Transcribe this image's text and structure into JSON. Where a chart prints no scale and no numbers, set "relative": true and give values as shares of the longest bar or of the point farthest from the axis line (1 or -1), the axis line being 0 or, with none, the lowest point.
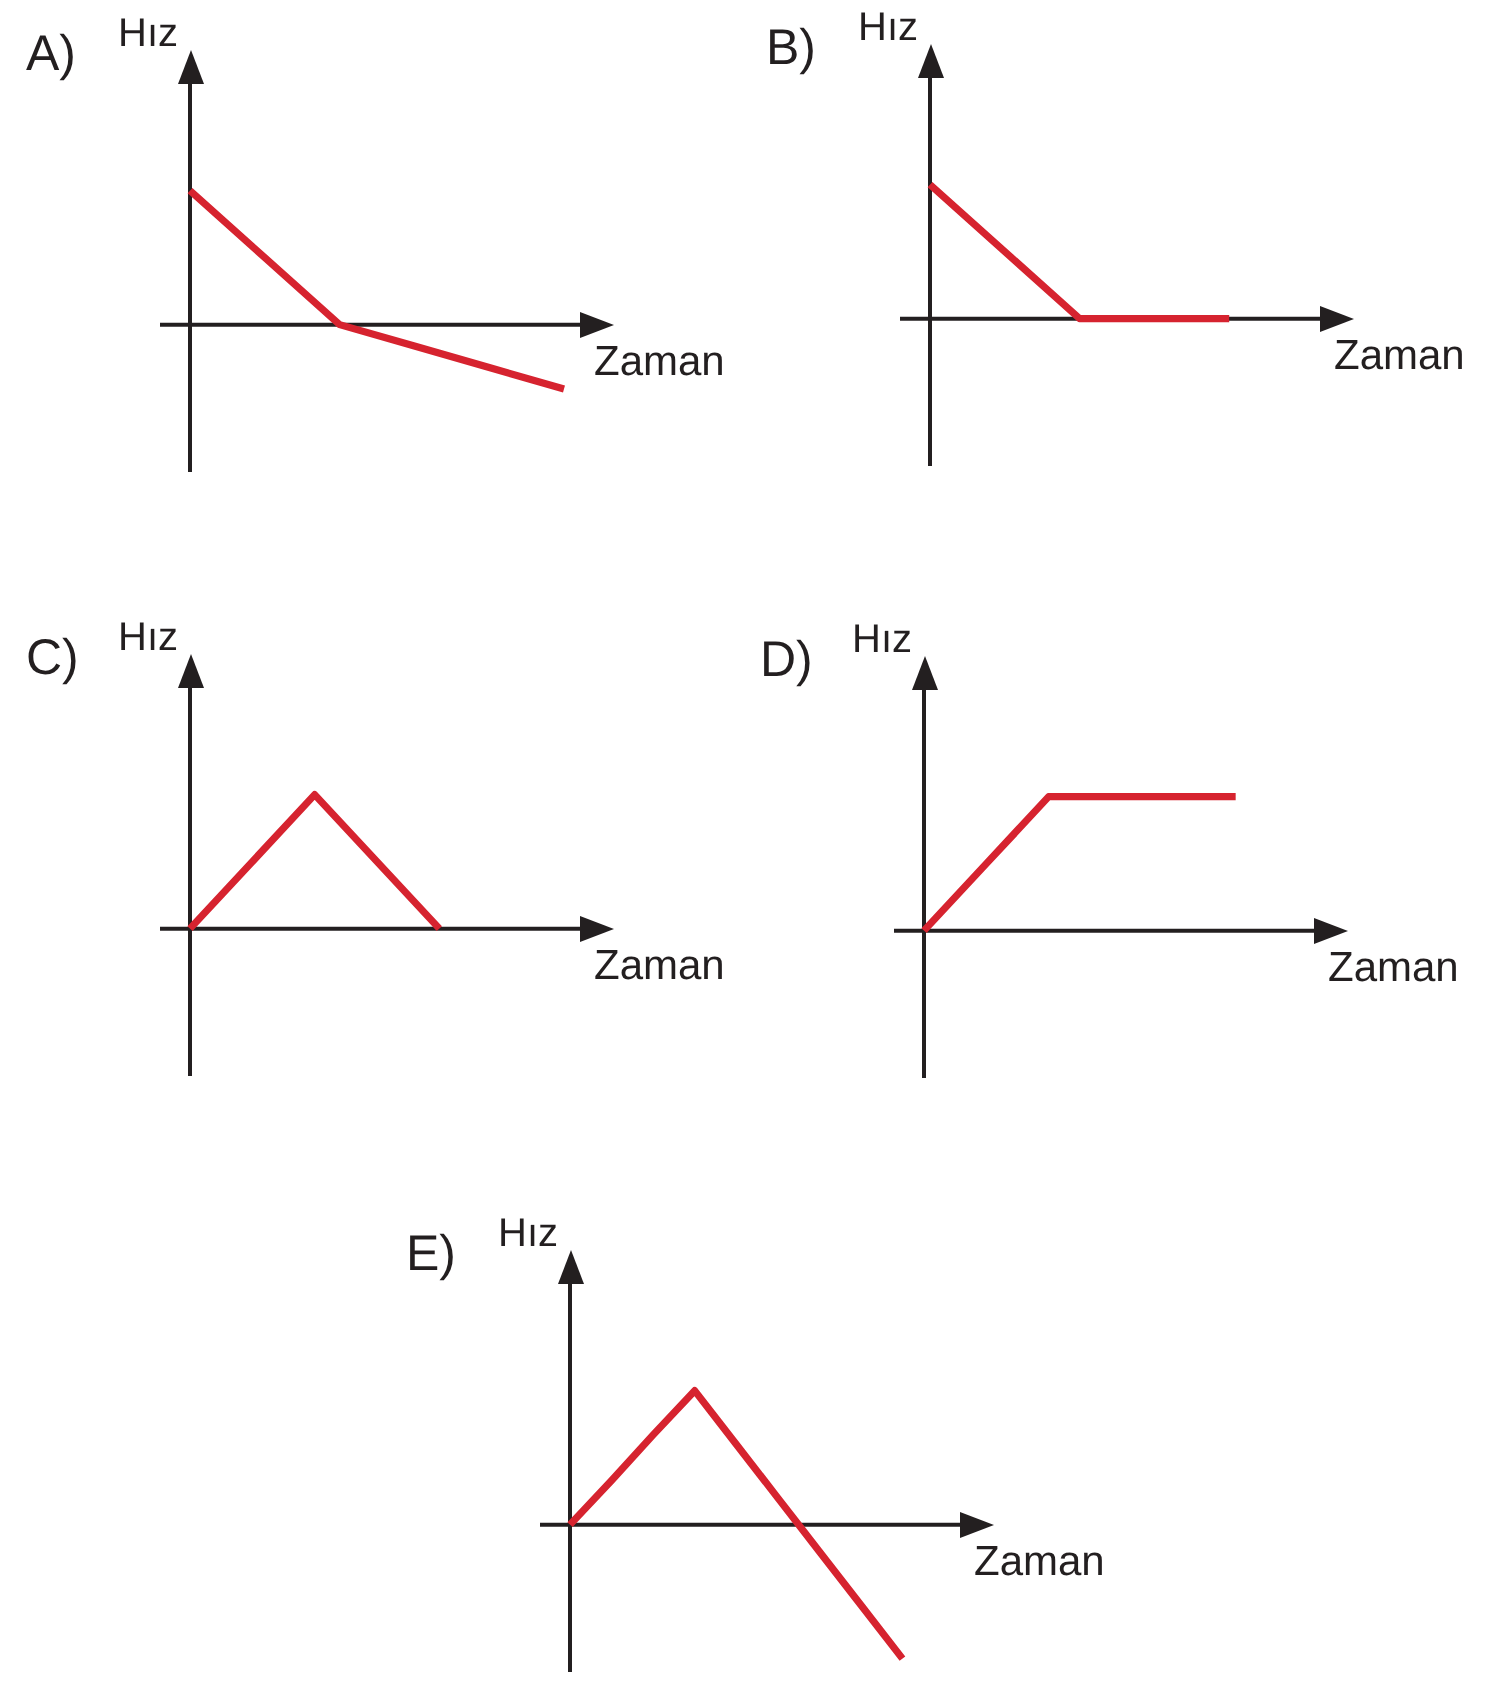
{
  "chart_data": [
    {
      "type": "line",
      "title": "A)",
      "xlabel": "Zaman",
      "ylabel": "Hız",
      "relative": true,
      "tick_labels": false,
      "categories": [
        null,
        null,
        null,
        null,
        null,
        null
      ],
      "values": [
        1,
        0.5,
        0,
        -0.16,
        -0.32,
        -0.48
      ],
      "color": "#d6232f"
    },
    {
      "type": "line",
      "title": "B)",
      "xlabel": "Zaman",
      "ylabel": "Hız",
      "relative": true,
      "tick_labels": false,
      "categories": [
        null,
        null,
        null,
        null,
        null,
        null
      ],
      "values": [
        1,
        0.5,
        0,
        0,
        0,
        null
      ],
      "color": "#d6232f"
    },
    {
      "type": "line",
      "title": "C)",
      "xlabel": "Zaman",
      "ylabel": "Hız",
      "relative": true,
      "tick_labels": false,
      "categories": [
        null,
        null,
        null,
        null
      ],
      "values": [
        0,
        1,
        0,
        null
      ],
      "color": "#d6232f"
    },
    {
      "type": "line",
      "title": "D)",
      "xlabel": "Zaman",
      "ylabel": "Hız",
      "relative": true,
      "tick_labels": false,
      "categories": [
        null,
        null,
        null,
        null,
        null,
        null,
        null
      ],
      "values": [
        0,
        0.5,
        1,
        1,
        1,
        1,
        null
      ],
      "color": "#d6232f"
    },
    {
      "type": "line",
      "title": "E)",
      "xlabel": "Zaman",
      "ylabel": "Hız",
      "relative": true,
      "tick_labels": false,
      "categories": [
        null,
        null,
        null,
        null,
        null,
        null,
        null,
        null,
        null,
        null
      ],
      "values": [
        0,
        0.33,
        0.67,
        1,
        0.6,
        0.2,
        -0.2,
        -0.6,
        -1,
        null
      ],
      "color": "#d6232f"
    }
  ]
}
